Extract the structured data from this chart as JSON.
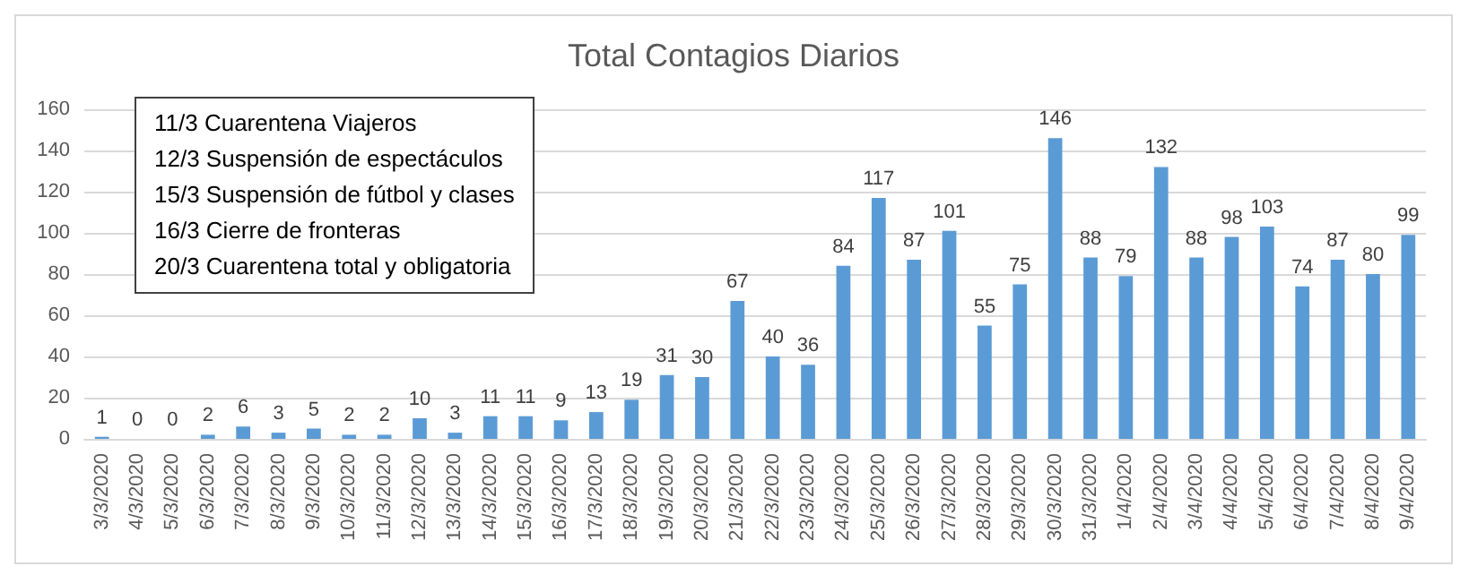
{
  "chart_data": {
    "type": "bar",
    "title": "Total Contagios Diarios",
    "categories": [
      "3/3/2020",
      "4/3/2020",
      "5/3/2020",
      "6/3/2020",
      "7/3/2020",
      "8/3/2020",
      "9/3/2020",
      "10/3/2020",
      "11/3/2020",
      "12/3/2020",
      "13/3/2020",
      "14/3/2020",
      "15/3/2020",
      "16/3/2020",
      "17/3/2020",
      "18/3/2020",
      "19/3/2020",
      "20/3/2020",
      "21/3/2020",
      "22/3/2020",
      "23/3/2020",
      "24/3/2020",
      "25/3/2020",
      "26/3/2020",
      "27/3/2020",
      "28/3/2020",
      "29/3/2020",
      "30/3/2020",
      "31/3/2020",
      "1/4/2020",
      "2/4/2020",
      "3/4/2020",
      "4/4/2020",
      "5/4/2020",
      "6/4/2020",
      "7/4/2020",
      "8/4/2020",
      "9/4/2020"
    ],
    "values": [
      1,
      0,
      0,
      2,
      6,
      3,
      5,
      2,
      2,
      10,
      3,
      11,
      11,
      9,
      13,
      19,
      31,
      30,
      67,
      40,
      36,
      84,
      117,
      87,
      101,
      55,
      75,
      146,
      88,
      79,
      132,
      88,
      98,
      103,
      74,
      87,
      80,
      99
    ],
    "color": "#5b9bd5",
    "ylim": [
      0,
      160
    ],
    "yticks": [
      0,
      20,
      40,
      60,
      80,
      100,
      120,
      140,
      160
    ],
    "grid": "y",
    "data_labels": true,
    "annotations": [
      "11/3 Cuarentena Viajeros",
      "12/3 Suspensión de espectáculos",
      "15/3 Suspensión de fútbol y clases",
      "16/3 Cierre de fronteras",
      "20/3 Cuarentena total y obligatoria"
    ]
  }
}
